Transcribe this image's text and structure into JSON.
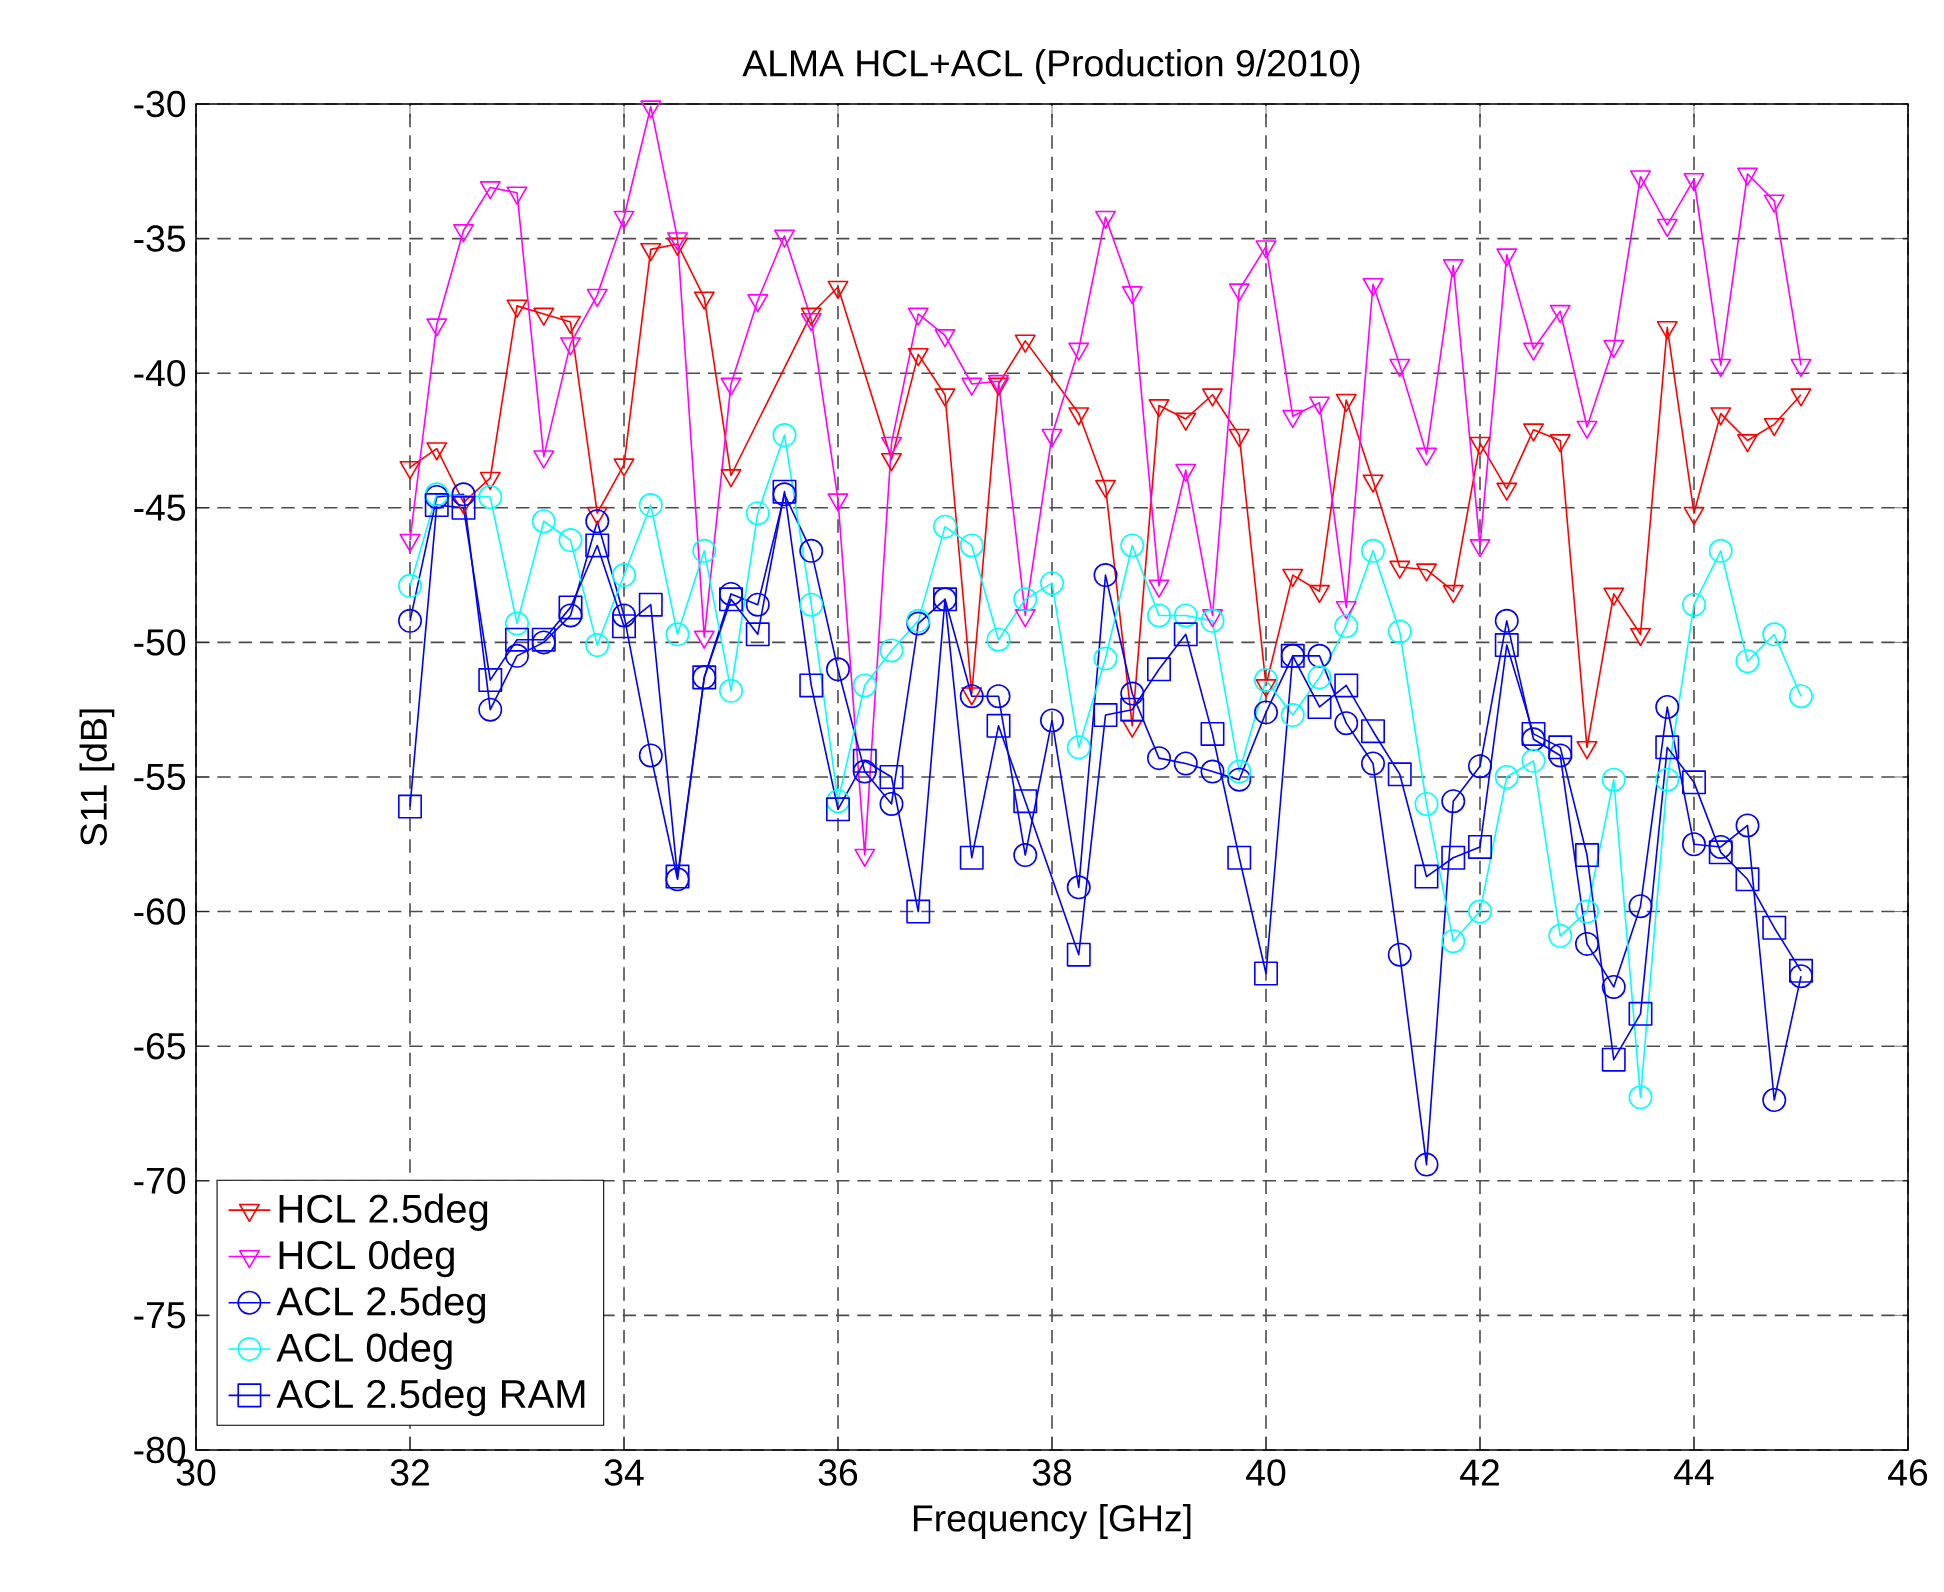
{
  "chart_data": {
    "type": "line",
    "title": "ALMA HCL+ACL (Production 9/2010)",
    "xlabel": "Frequency [GHz]",
    "ylabel": "S11 [dB]",
    "xlim": [
      30,
      46
    ],
    "xticks": [
      30,
      32,
      34,
      36,
      38,
      40,
      42,
      44,
      46
    ],
    "ylim": [
      -80,
      -30
    ],
    "yticks": [
      -80,
      -75,
      -70,
      -65,
      -60,
      -55,
      -50,
      -45,
      -40,
      -35,
      -30
    ],
    "grid": true,
    "legend": "bottom left",
    "series": [
      {
        "name": "HCL 2.5deg",
        "color": "#ff0000",
        "marker": "triangle",
        "x": [
          32,
          32.25,
          32.5,
          32.75,
          33,
          33.25,
          33.5,
          33.75,
          34,
          34.25,
          34.5,
          34.75,
          35,
          35.75,
          36,
          36.5,
          36.75,
          37,
          37.25,
          37.5,
          37.75,
          38,
          38.25,
          38.5,
          38.75,
          39,
          39.25,
          39.5,
          39.75,
          40,
          40.25,
          40.5,
          40.75,
          41,
          41.25,
          41.5,
          41.75,
          42,
          42.25,
          42.5,
          42.75,
          43,
          43.25,
          43.5,
          43.75,
          44,
          44.25,
          44.5,
          44.75,
          45
        ],
        "values": [
          -43.5,
          -42.8,
          -44.8,
          -43.9,
          -37.5,
          -37.8,
          -38.1,
          -45.2,
          -43.4,
          -35.4,
          -35.2,
          -37.2,
          -43.8,
          -37.8,
          -36.8,
          -43.2,
          -39.3,
          -40.8,
          -51.9,
          -40.4,
          -38.8,
          null,
          -41.5,
          -44.2,
          -53.1,
          -41.2,
          -41.7,
          -40.8,
          -42.3,
          -51.6,
          -47.5,
          -48.1,
          -41.0,
          -44.0,
          -47.2,
          -47.3,
          -48.1,
          -42.6,
          -44.3,
          -42.1,
          -42.5,
          -53.9,
          -48.2,
          -49.7,
          -38.3,
          -45.2,
          -41.5,
          -42.5,
          -41.9,
          -40.8
        ]
      },
      {
        "name": "HCL 0deg",
        "color": "#ff00ff",
        "marker": "triangle",
        "x": [
          32,
          32.25,
          32.5,
          32.75,
          33,
          33.25,
          33.5,
          33.75,
          34,
          34.25,
          34.5,
          34.75,
          35,
          35.25,
          35.5,
          35.75,
          36,
          36.25,
          36.5,
          36.75,
          37,
          37.25,
          37.5,
          37.75,
          38,
          38.25,
          38.5,
          38.75,
          39,
          39.25,
          39.5,
          39.75,
          40,
          40.25,
          40.5,
          40.75,
          41,
          41.25,
          41.5,
          41.75,
          42,
          42.25,
          42.5,
          42.75,
          43,
          43.25,
          43.5,
          43.75,
          44,
          44.25,
          44.5,
          44.75,
          45
        ],
        "values": [
          -46.2,
          -38.2,
          -34.7,
          -33.1,
          -33.3,
          -43.1,
          -38.9,
          -37.1,
          -34.2,
          -30.1,
          -35.0,
          -49.8,
          -40.4,
          -37.3,
          -34.9,
          -38.0,
          -44.7,
          -57.9,
          -42.6,
          -37.8,
          -38.6,
          -40.4,
          -40.3,
          -49.0,
          -42.3,
          -39.1,
          -34.2,
          -37.0,
          -47.9,
          -43.6,
          -49.0,
          -36.9,
          -35.3,
          -41.6,
          -41.1,
          -48.7,
          -36.7,
          -39.7,
          -43.0,
          -36.0,
          -46.4,
          -35.6,
          -39.1,
          -37.7,
          -42.0,
          -39.0,
          -32.7,
          -34.5,
          -32.8,
          -39.7,
          -32.6,
          -33.6,
          -39.7
        ]
      },
      {
        "name": "ACL 2.5deg",
        "color": "#0000ff",
        "marker": "circle",
        "x": [
          32,
          32.25,
          32.5,
          32.75,
          33,
          33.25,
          33.5,
          33.75,
          34,
          34.25,
          34.5,
          34.75,
          35,
          35.25,
          35.5,
          35.75,
          36,
          36.25,
          36.5,
          36.75,
          37,
          37.25,
          37.5,
          37.75,
          38,
          38.25,
          38.5,
          38.75,
          39,
          39.25,
          39.5,
          39.75,
          40,
          40.25,
          40.5,
          40.75,
          41,
          41.25,
          41.5,
          41.75,
          42,
          42.25,
          42.5,
          42.75,
          43,
          43.25,
          43.5,
          43.75,
          44,
          44.25,
          44.5,
          44.75,
          45
        ],
        "values": [
          -49.2,
          -44.6,
          -44.5,
          -52.5,
          -50.5,
          -50.0,
          -49.0,
          -45.5,
          -49.0,
          -54.2,
          -58.8,
          -51.3,
          -48.2,
          -48.6,
          -44.5,
          -46.6,
          -51.0,
          -54.8,
          -56.0,
          -49.3,
          -48.4,
          -52.0,
          -52.0,
          -57.9,
          -52.9,
          -59.1,
          -47.5,
          -51.9,
          -54.3,
          -54.5,
          -54.8,
          -55.1,
          -52.6,
          -50.5,
          -50.5,
          -53.0,
          -54.5,
          -61.6,
          -69.4,
          -55.9,
          -54.6,
          -49.2,
          -53.6,
          -54.2,
          -61.2,
          -62.8,
          -59.8,
          -52.4,
          -57.5,
          -57.6,
          -56.8,
          -67.0,
          -62.4
        ]
      },
      {
        "name": "ACL 0deg",
        "color": "#00ffff",
        "marker": "circle",
        "x": [
          32,
          32.25,
          32.5,
          32.75,
          33,
          33.25,
          33.5,
          33.75,
          34,
          34.25,
          34.5,
          34.75,
          35,
          35.25,
          35.5,
          35.75,
          36,
          36.25,
          36.5,
          36.75,
          37,
          37.25,
          37.5,
          37.75,
          38,
          38.25,
          38.5,
          38.75,
          39,
          39.25,
          39.5,
          39.75,
          40,
          40.25,
          40.5,
          40.75,
          41,
          41.25,
          41.5,
          41.75,
          42,
          42.25,
          42.5,
          42.75,
          43,
          43.25,
          43.5,
          43.75,
          44,
          44.25,
          44.5,
          44.75,
          45
        ],
        "values": [
          -47.9,
          -44.5,
          null,
          -44.6,
          -49.3,
          -45.5,
          -46.2,
          -50.1,
          -47.5,
          -44.9,
          -49.7,
          -46.6,
          -51.8,
          -45.2,
          -42.3,
          -48.6,
          -55.9,
          -51.6,
          -50.3,
          -49.2,
          -45.7,
          -46.4,
          -49.9,
          -48.4,
          -47.8,
          -53.9,
          -50.6,
          -46.4,
          -49.0,
          -49.0,
          -49.2,
          -54.8,
          -51.4,
          -52.7,
          -51.3,
          -49.4,
          -46.6,
          -49.6,
          -56.0,
          -61.1,
          -60.0,
          -55.0,
          -54.4,
          -60.9,
          -60.0,
          -55.1,
          -66.9,
          -55.1,
          -48.6,
          -46.6,
          -50.7,
          -49.7,
          -52.0
        ]
      },
      {
        "name": "ACL 2.5deg RAM",
        "color": "#0000ff",
        "marker": "square",
        "x": [
          32,
          32.25,
          32.5,
          32.75,
          33,
          33.25,
          33.5,
          33.75,
          34,
          34.25,
          34.5,
          34.75,
          35,
          35.25,
          35.5,
          35.75,
          36,
          36.25,
          36.5,
          36.75,
          37,
          37.25,
          37.5,
          37.75,
          38.25,
          38.5,
          38.75,
          39,
          39.25,
          39.5,
          39.75,
          40,
          40.25,
          40.5,
          40.75,
          41,
          41.25,
          41.5,
          41.75,
          42,
          42.25,
          42.5,
          42.75,
          43,
          43.25,
          43.5,
          43.75,
          44,
          44.25,
          44.5,
          44.75,
          45
        ],
        "values": [
          -56.1,
          -44.9,
          -45.0,
          -51.4,
          -49.9,
          -49.9,
          -48.7,
          -46.4,
          -49.4,
          -48.6,
          -58.7,
          -51.3,
          -48.4,
          -49.7,
          -44.4,
          -51.6,
          -56.2,
          -54.4,
          -55.0,
          -60.0,
          -48.4,
          -58.0,
          -53.1,
          -55.9,
          -61.6,
          -52.7,
          -52.5,
          -51.0,
          -49.7,
          -53.4,
          -58.0,
          -62.3,
          -50.5,
          -52.4,
          -51.6,
          -53.3,
          -54.9,
          -58.7,
          -58.0,
          -57.6,
          -50.1,
          -53.4,
          -53.9,
          -57.9,
          -65.5,
          -63.8,
          -53.9,
          -55.2,
          -57.8,
          -58.8,
          -60.6,
          -62.2
        ]
      }
    ]
  }
}
